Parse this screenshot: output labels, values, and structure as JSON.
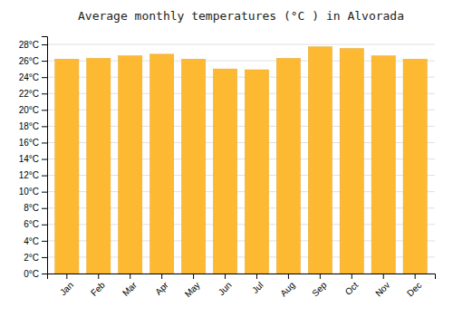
{
  "chart_data": {
    "type": "bar",
    "title": "Average monthly temperatures (°C ) in Alvorada",
    "categories": [
      "Jan",
      "Feb",
      "Mar",
      "Apr",
      "May",
      "Jun",
      "Jul",
      "Aug",
      "Sep",
      "Oct",
      "Nov",
      "Dec"
    ],
    "values": [
      26.2,
      26.3,
      26.6,
      26.8,
      26.2,
      25.0,
      24.9,
      26.3,
      27.7,
      27.5,
      26.6,
      26.2
    ],
    "color": "#FDB931",
    "ylim": [
      0,
      29
    ],
    "yticks": [
      {
        "value": 0,
        "label": "0°C"
      },
      {
        "value": 2,
        "label": "2°C"
      },
      {
        "value": 4,
        "label": "4°C"
      },
      {
        "value": 6,
        "label": "6°C"
      },
      {
        "value": 8,
        "label": "8°C"
      },
      {
        "value": 10,
        "label": "10°C"
      },
      {
        "value": 12,
        "label": "12°C"
      },
      {
        "value": 14,
        "label": "14°C"
      },
      {
        "value": 16,
        "label": "16°C"
      },
      {
        "value": 18,
        "label": "18°C"
      },
      {
        "value": 20,
        "label": "20°C"
      },
      {
        "value": 22,
        "label": "22°C"
      },
      {
        "value": 24,
        "label": "24°C"
      },
      {
        "value": 26,
        "label": "26°C"
      },
      {
        "value": 28,
        "label": "28°C"
      }
    ],
    "grid": true
  }
}
